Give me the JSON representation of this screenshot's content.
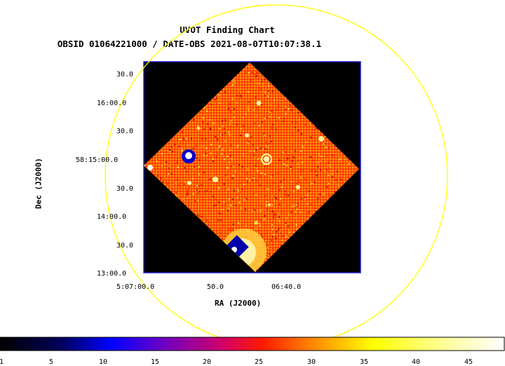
{
  "title": "UVOT Finding Chart",
  "subtitle": "OBSID 01064221000 / DATE-OBS 2021-08-07T10:07:38.1",
  "axes": {
    "xlabel": "RA (J2000)",
    "ylabel": "Dec (J2000)",
    "x_ticks": [
      "5:07:00.0",
      "50.0",
      "06:40.0"
    ],
    "y_ticks": [
      "30.0",
      "16:00.0",
      "30.0",
      "58:15:00.0",
      "30.0",
      "14:00.0",
      "30.0",
      "13:00.0"
    ]
  },
  "colorbar": {
    "ticks": [
      "1",
      "5",
      "10",
      "15",
      "20",
      "25",
      "30",
      "35",
      "40",
      "45"
    ],
    "colors": [
      "#000000",
      "#0000ff",
      "#ff0000",
      "#ffff00",
      "#ffffff"
    ]
  },
  "colors": {
    "frame": "#0000cc",
    "circle": "#ffff00",
    "image_base": "#ff5500",
    "background": "#000000"
  }
}
